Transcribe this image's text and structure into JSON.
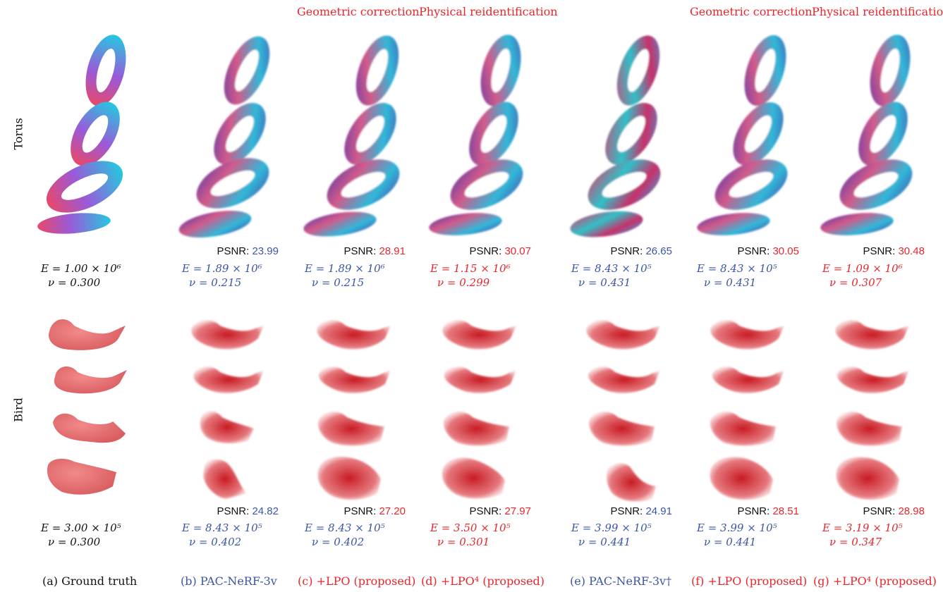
{
  "headers": {
    "left_geo": "Geometric correction",
    "left_phys": "Physical reidentification",
    "right_geo": "Geometric correction",
    "right_phys": "Physical reidentification"
  },
  "rows": {
    "torus": "Torus",
    "bird": "Bird"
  },
  "captions": [
    {
      "text": "(a) Ground truth",
      "color": "black"
    },
    {
      "text": "(b) PAC-NeRF-3v",
      "color": "blue"
    },
    {
      "text": "(c) +LPO (proposed)",
      "color": "red"
    },
    {
      "text": "(d) +LPO⁴ (proposed)",
      "color": "red"
    },
    {
      "text": "(e) PAC-NeRF-3v†",
      "color": "blue"
    },
    {
      "text": "(f) +LPO (proposed)",
      "color": "red"
    },
    {
      "text": "(g) +LPO⁴ (proposed)",
      "color": "red"
    }
  ],
  "psnr_label": "PSNR:",
  "torus_metrics": [
    {
      "psnr": "",
      "E": "E = 1.00 × 10⁶",
      "nu": "ν = 0.300",
      "pcolor": "black",
      "ecolor": "black",
      "ncolor": "black"
    },
    {
      "psnr": "23.99",
      "E": "E = 1.89 × 10⁶",
      "nu": "ν = 0.215",
      "pcolor": "blue",
      "ecolor": "blue",
      "ncolor": "blue"
    },
    {
      "psnr": "28.91",
      "E": "E = 1.89 × 10⁶",
      "nu": "ν = 0.215",
      "pcolor": "red",
      "ecolor": "blue",
      "ncolor": "blue"
    },
    {
      "psnr": "30.07",
      "E": "E = 1.15 × 10⁶",
      "nu": "ν = 0.299",
      "pcolor": "red",
      "ecolor": "red",
      "ncolor": "red"
    },
    {
      "psnr": "26.65",
      "E": "E = 8.43 × 10⁵",
      "nu": "ν = 0.431",
      "pcolor": "blue",
      "ecolor": "blue",
      "ncolor": "blue"
    },
    {
      "psnr": "30.05",
      "E": "E = 8.43 × 10⁵",
      "nu": "ν = 0.431",
      "pcolor": "red",
      "ecolor": "blue",
      "ncolor": "blue"
    },
    {
      "psnr": "30.48",
      "E": "E = 1.09 × 10⁶",
      "nu": "ν = 0.307",
      "pcolor": "red",
      "ecolor": "red",
      "ncolor": "red"
    }
  ],
  "bird_metrics": [
    {
      "psnr": "",
      "E": "E = 3.00 × 10⁵",
      "nu": "ν = 0.300",
      "pcolor": "black",
      "ecolor": "black",
      "ncolor": "black"
    },
    {
      "psnr": "24.82",
      "E": "E = 8.43 × 10⁵",
      "nu": "ν = 0.402",
      "pcolor": "blue",
      "ecolor": "blue",
      "ncolor": "blue"
    },
    {
      "psnr": "27.20",
      "E": "E = 8.43 × 10⁵",
      "nu": "ν = 0.402",
      "pcolor": "red",
      "ecolor": "blue",
      "ncolor": "blue"
    },
    {
      "psnr": "27.97",
      "E": "E = 3.50 × 10⁵",
      "nu": "ν = 0.301",
      "pcolor": "red",
      "ecolor": "red",
      "ncolor": "red"
    },
    {
      "psnr": "24.91",
      "E": "E = 3.99 × 10⁵",
      "nu": "ν = 0.441",
      "pcolor": "blue",
      "ecolor": "blue",
      "ncolor": "blue"
    },
    {
      "psnr": "28.51",
      "E": "E = 3.99 × 10⁵",
      "nu": "ν = 0.441",
      "pcolor": "red",
      "ecolor": "blue",
      "ncolor": "blue"
    },
    {
      "psnr": "28.98",
      "E": "E = 3.19 × 10⁵",
      "nu": "ν = 0.347",
      "pcolor": "red",
      "ecolor": "red",
      "ncolor": "red"
    }
  ],
  "colors": {
    "red": "#e8262c",
    "blue": "#3a56a8",
    "black": "#111111"
  }
}
